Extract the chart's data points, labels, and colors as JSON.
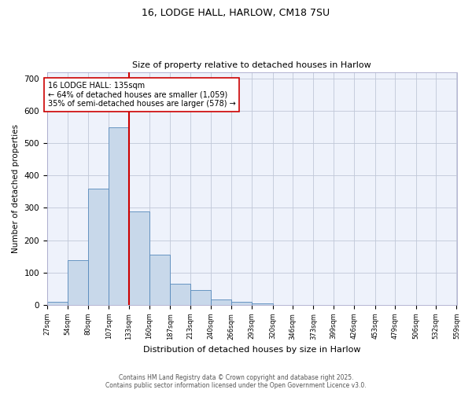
{
  "title1": "16, LODGE HALL, HARLOW, CM18 7SU",
  "title2": "Size of property relative to detached houses in Harlow",
  "xlabel": "Distribution of detached houses by size in Harlow",
  "ylabel": "Number of detached properties",
  "annotation_line1": "16 LODGE HALL: 135sqm",
  "annotation_line2": "← 64% of detached houses are smaller (1,059)",
  "annotation_line3": "35% of semi-detached houses are larger (578) →",
  "bin_edges": [
    27,
    54,
    80,
    107,
    133,
    160,
    187,
    213,
    240,
    266,
    293,
    320,
    346,
    373,
    399,
    426,
    453,
    479,
    506,
    532,
    559
  ],
  "bin_labels": [
    "27sqm",
    "54sqm",
    "80sqm",
    "107sqm",
    "133sqm",
    "160sqm",
    "187sqm",
    "213sqm",
    "240sqm",
    "266sqm",
    "293sqm",
    "320sqm",
    "346sqm",
    "373sqm",
    "399sqm",
    "426sqm",
    "453sqm",
    "479sqm",
    "506sqm",
    "532sqm",
    "559sqm"
  ],
  "bar_heights": [
    10,
    138,
    360,
    550,
    290,
    155,
    65,
    45,
    18,
    10,
    5,
    0,
    0,
    0,
    0,
    0,
    0,
    0,
    0,
    0
  ],
  "bar_color": "#c8d8ea",
  "bar_edge_color": "#5588bb",
  "vline_color": "#cc0000",
  "vline_x": 133,
  "annotation_box_color": "#cc0000",
  "background_color": "#eef2fb",
  "ylim": [
    0,
    720
  ],
  "yticks": [
    0,
    100,
    200,
    300,
    400,
    500,
    600,
    700
  ],
  "footer1": "Contains HM Land Registry data © Crown copyright and database right 2025.",
  "footer2": "Contains public sector information licensed under the Open Government Licence v3.0."
}
